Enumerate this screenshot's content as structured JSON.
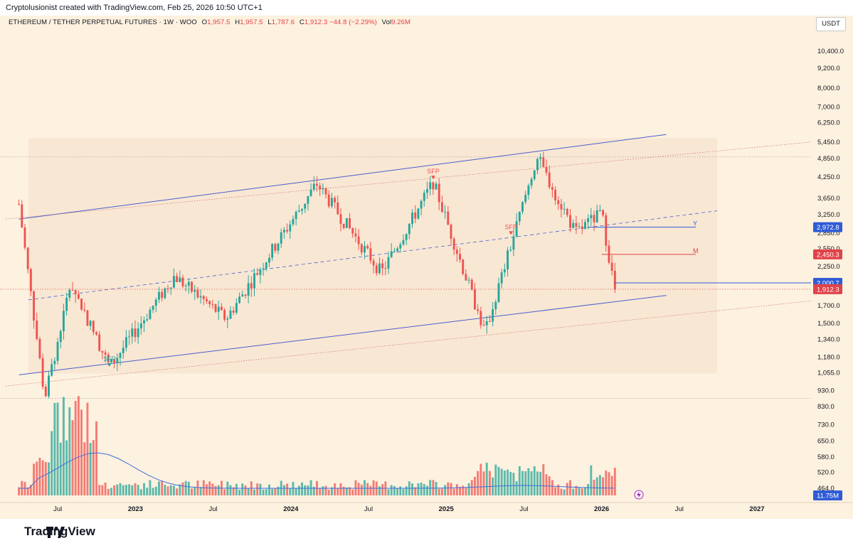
{
  "header": {
    "credit": "Cryptolusionist created with TradingView.com, Feb 25, 2026 10:50 UTC+1"
  },
  "legend": {
    "symbol": "ETHEREUM / TETHER PERPETUAL FUTURES · 1W · WOO",
    "open_label": "O",
    "open": "1,957.5",
    "high_label": "H",
    "high": "1,957.5",
    "low_label": "L",
    "low": "1,787.6",
    "close_label": "C",
    "close": "1,912.3",
    "change": "−44.8 (−2.29%)",
    "vol_label": "Vol",
    "volume": "9.26M"
  },
  "currency_button": "USDT",
  "footer": {
    "brand": "TradingView"
  },
  "colors": {
    "up": "#26a69a",
    "down": "#ef5350",
    "channel": "#4a5fd0",
    "badge_red": "#e0434a",
    "badge_blue": "#2f5bd6",
    "volume_ma": "#3d6fe0"
  },
  "chart_data": {
    "type": "candlestick",
    "y_scale": "log",
    "price_axis_ticks": [
      "10,400.0",
      "9,200.0",
      "8,000.0",
      "7,000.0",
      "6,250.0",
      "5,450.0",
      "4,850.0",
      "4,250.0",
      "3,650.0",
      "3,250.0",
      "2,850.0",
      "2,550.0",
      "2,250.0",
      "1,940.0",
      "1,700.0",
      "1,500.0",
      "1,340.0",
      "1,180.0",
      "1,055.0",
      "930.0",
      "830.0",
      "730.0",
      "650.0",
      "580.0",
      "520.0",
      "464.0"
    ],
    "time_axis_ticks": [
      "Jul",
      "2023",
      "Jul",
      "2024",
      "Jul",
      "2025",
      "Jul",
      "2026",
      "Jul",
      "2027"
    ],
    "price_badges": [
      {
        "value": "2,972.8",
        "color": "#2f5bd6"
      },
      {
        "value": "2,450.3",
        "color": "#e0434a"
      },
      {
        "value": "2,000.7",
        "color": "#2f5bd6"
      },
      {
        "value": "1,912.3",
        "color": "#e0434a"
      },
      {
        "value": "11.75M",
        "color": "#2f5bd6"
      }
    ],
    "level_labels": [
      {
        "text": "Y",
        "price": 2972.8
      },
      {
        "text": "M",
        "price": 2450.3
      }
    ],
    "annotations": [
      {
        "text": "SFP",
        "date": "2024-12",
        "price": 4100,
        "color": "#ef5350"
      },
      {
        "text": "SFP",
        "date": "2025-06",
        "price": 2760,
        "color": "#ef5350"
      },
      {
        "text": "SFP",
        "date": "2022-11",
        "price": 1080,
        "color": "#26a69a"
      }
    ],
    "channel": {
      "upper": [
        {
          "date": "2022-04",
          "price": 3150
        },
        {
          "date": "2026-06",
          "price": 5750
        }
      ],
      "lower": [
        {
          "date": "2022-04",
          "price": 1040
        },
        {
          "date": "2026-06",
          "price": 1830
        }
      ]
    },
    "ohlc_key_points": [
      {
        "date": "2022-04",
        "price": 3500
      },
      {
        "date": "2022-06",
        "price": 880
      },
      {
        "date": "2022-08",
        "price": 2000
      },
      {
        "date": "2022-11",
        "price": 1100
      },
      {
        "date": "2023-04",
        "price": 2100
      },
      {
        "date": "2023-08",
        "price": 1550
      },
      {
        "date": "2024-03",
        "price": 4050
      },
      {
        "date": "2024-08",
        "price": 2150
      },
      {
        "date": "2024-12",
        "price": 4100
      },
      {
        "date": "2025-04",
        "price": 1400
      },
      {
        "date": "2025-08",
        "price": 4900
      },
      {
        "date": "2025-11",
        "price": 2850
      },
      {
        "date": "2026-01",
        "price": 3300
      },
      {
        "date": "2026-02",
        "price": 1912.3
      }
    ]
  }
}
